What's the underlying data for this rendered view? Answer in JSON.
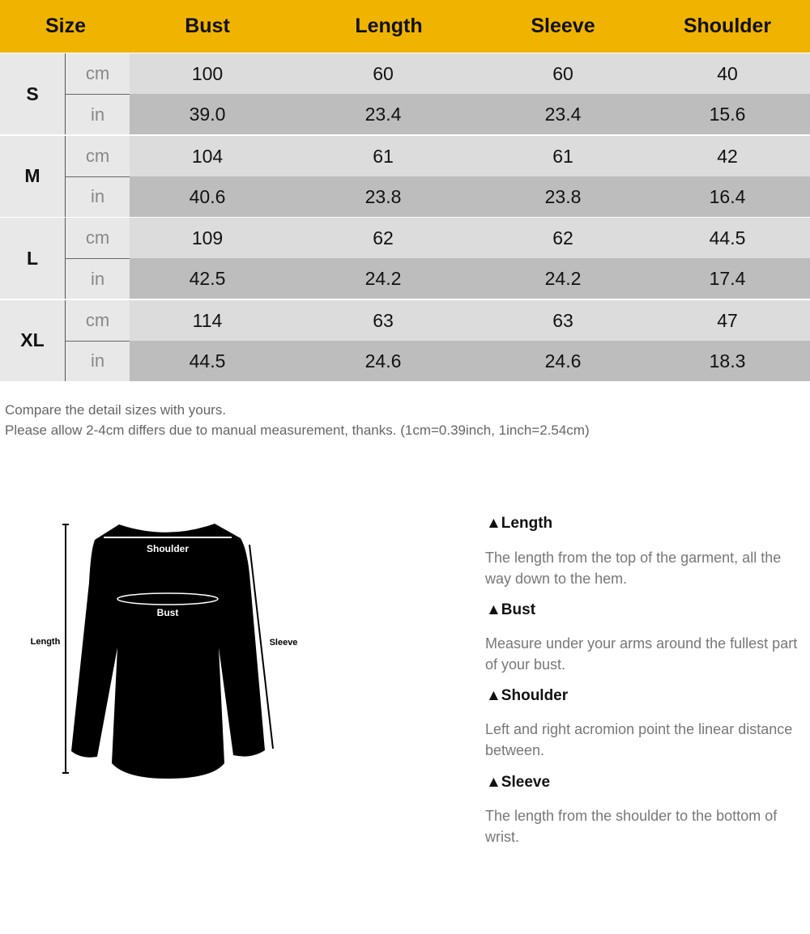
{
  "header": [
    "Size",
    "Bust",
    "Length",
    "Sleeve",
    "Shoulder"
  ],
  "colors": {
    "header_bg": "#F0B400",
    "cm_row": "#dcdcdc",
    "in_row": "#bdbdbd"
  },
  "sizes": [
    {
      "size": "S",
      "cm": {
        "unit": "cm",
        "values": [
          "100",
          "60",
          "60",
          "40"
        ]
      },
      "in": {
        "unit": "in",
        "values": [
          "39.0",
          "23.4",
          "23.4",
          "15.6"
        ]
      }
    },
    {
      "size": "M",
      "cm": {
        "unit": "cm",
        "values": [
          "104",
          "61",
          "61",
          "42"
        ]
      },
      "in": {
        "unit": "in",
        "values": [
          "40.6",
          "23.8",
          "23.8",
          "16.4"
        ]
      }
    },
    {
      "size": "L",
      "cm": {
        "unit": "cm",
        "values": [
          "109",
          "62",
          "62",
          "44.5"
        ]
      },
      "in": {
        "unit": "in",
        "values": [
          "42.5",
          "24.2",
          "24.2",
          "17.4"
        ]
      }
    },
    {
      "size": "XL",
      "cm": {
        "unit": "cm",
        "values": [
          "114",
          "63",
          "63",
          "47"
        ]
      },
      "in": {
        "unit": "in",
        "values": [
          "44.5",
          "24.6",
          "24.6",
          "18.3"
        ]
      }
    }
  ],
  "notes": [
    "Compare the detail sizes with yours.",
    "Please allow 2-4cm differs due to manual measurement, thanks. (1cm=0.39inch, 1inch=2.54cm)"
  ],
  "diagram": {
    "shoulder": "Shoulder",
    "bust": "Bust",
    "length": "Length",
    "sleeve": "Sleeve"
  },
  "descriptions": [
    {
      "title": "▲Length",
      "text": "The length from the top of the garment, all the way down to the hem."
    },
    {
      "title": "▲Bust",
      "text": "Measure under your arms around the fullest part of your bust."
    },
    {
      "title": "▲Shoulder",
      "text": "Left and right acromion point the linear distance between."
    },
    {
      "title": "▲Sleeve",
      "text": "The length from the shoulder to the bottom of wrist."
    }
  ]
}
